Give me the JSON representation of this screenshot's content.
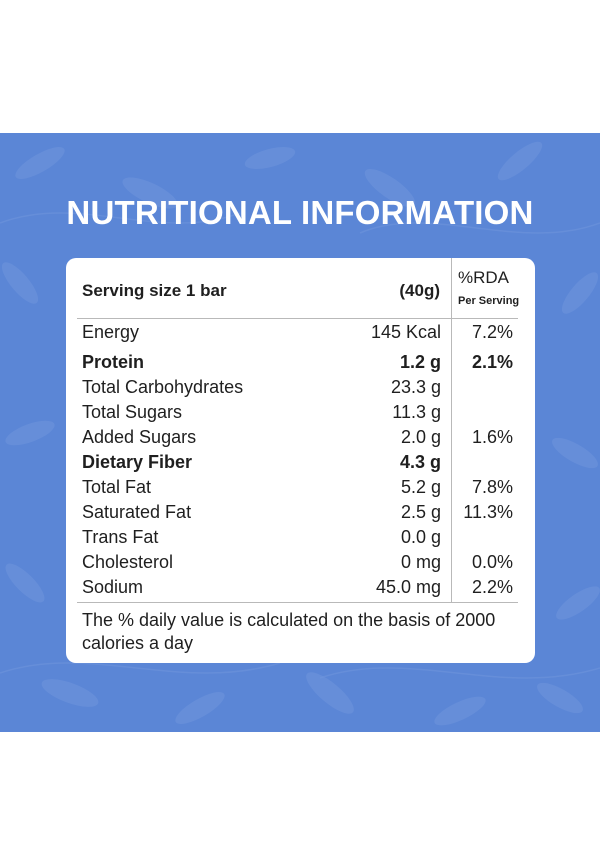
{
  "title": "NUTRITIONAL INFORMATION",
  "header": {
    "serving_label": "Serving size 1 bar",
    "serving_weight": "(40g)",
    "rda_label": "%RDA",
    "rda_sub": "Per Serving"
  },
  "rows": [
    {
      "name": "Energy",
      "value": "145 Kcal",
      "rda": "7.2%",
      "bold": false
    },
    {
      "name": "Protein",
      "value": "1.2 g",
      "rda": "2.1%",
      "bold": true
    },
    {
      "name": "Total Carbohydrates",
      "value": "23.3 g",
      "rda": "",
      "bold": false
    },
    {
      "name": "Total Sugars",
      "value": "11.3 g",
      "rda": "",
      "bold": false
    },
    {
      "name": "Added Sugars",
      "value": "2.0 g",
      "rda": "1.6%",
      "bold": false
    },
    {
      "name": "Dietary Fiber",
      "value": "4.3 g",
      "rda": "",
      "bold": true
    },
    {
      "name": "Total Fat",
      "value": "5.2 g",
      "rda": "7.8%",
      "bold": false
    },
    {
      "name": "Saturated Fat",
      "value": "2.5 g",
      "rda": "11.3%",
      "bold": false
    },
    {
      "name": "Trans Fat",
      "value": "0.0 g",
      "rda": "",
      "bold": false
    },
    {
      "name": "Cholesterol",
      "value": "0 mg",
      "rda": "0.0%",
      "bold": false
    },
    {
      "name": "Sodium",
      "value": "45.0 mg",
      "rda": "2.2%",
      "bold": false
    }
  ],
  "footnote": "The % daily value is calculated on the basis of 2000 calories a day",
  "colors": {
    "panel": "#5b86d6",
    "card": "#ffffff",
    "text": "#1f1f1f"
  }
}
